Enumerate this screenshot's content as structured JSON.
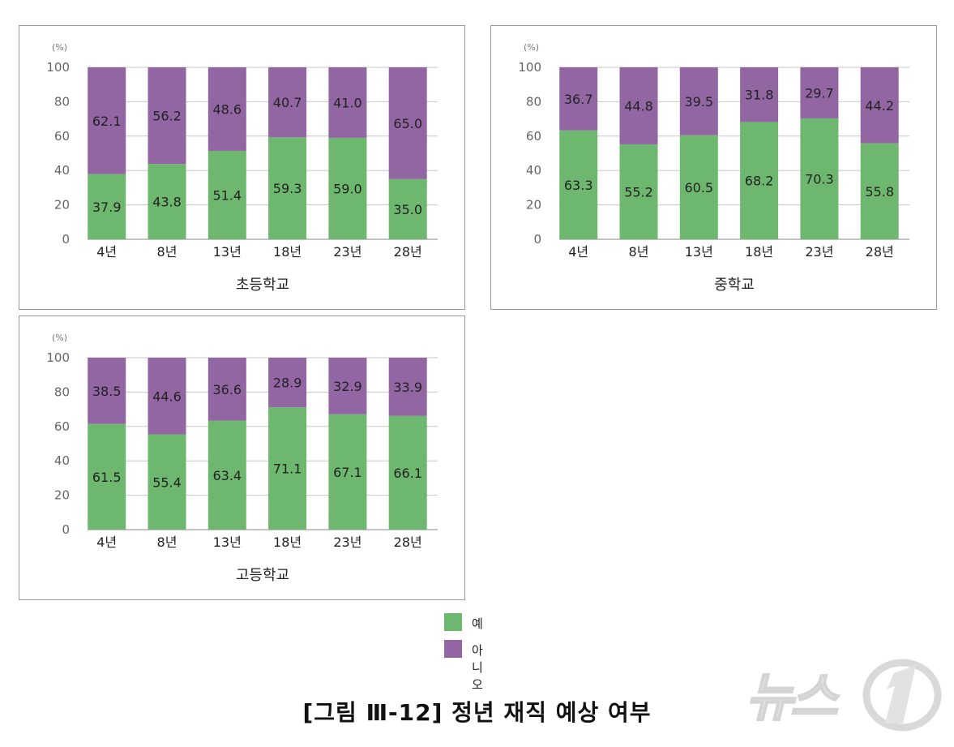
{
  "caption": "[그림 Ⅲ-12] 정년 재직 예상 여부",
  "legend": [
    {
      "label": "예",
      "color": "#6db86e"
    },
    {
      "label": "아니오",
      "color": "#9166a3"
    }
  ],
  "watermark": {
    "text": "뉴스1",
    "icon": "news1-logo"
  },
  "chart_data": [
    {
      "type": "bar",
      "stacked": true,
      "title": "초등학교",
      "unit": "(%)",
      "categories": [
        "4년",
        "8년",
        "13년",
        "18년",
        "23년",
        "28년"
      ],
      "yticks": [
        0,
        20,
        40,
        60,
        80,
        100
      ],
      "ylim": [
        0,
        100
      ],
      "grid": true,
      "series": [
        {
          "name": "예",
          "color": "#6db86e",
          "values": [
            37.9,
            43.8,
            51.4,
            59.3,
            59.0,
            35.0
          ],
          "labels": [
            "37.9",
            "43.8",
            "51.4",
            "59.3",
            "59.0",
            "35.0"
          ]
        },
        {
          "name": "아니오",
          "color": "#9166a3",
          "values": [
            62.1,
            56.2,
            48.6,
            40.7,
            41.0,
            65.0
          ],
          "labels": [
            "62.1",
            "56.2",
            "48.6",
            "40.7",
            "41.0",
            "65.0"
          ]
        }
      ]
    },
    {
      "type": "bar",
      "stacked": true,
      "title": "중학교",
      "unit": "(%)",
      "categories": [
        "4년",
        "8년",
        "13년",
        "18년",
        "23년",
        "28년"
      ],
      "yticks": [
        0,
        20,
        40,
        60,
        80,
        100
      ],
      "ylim": [
        0,
        100
      ],
      "grid": true,
      "series": [
        {
          "name": "예",
          "color": "#6db86e",
          "values": [
            63.3,
            55.2,
            60.5,
            68.2,
            70.3,
            55.8
          ],
          "labels": [
            "63.3",
            "55.2",
            "60.5",
            "68.2",
            "70.3",
            "55.8"
          ]
        },
        {
          "name": "아니오",
          "color": "#9166a3",
          "values": [
            36.7,
            44.8,
            39.5,
            31.8,
            29.7,
            44.2
          ],
          "labels": [
            "36.7",
            "44.8",
            "39.5",
            "31.8",
            "29.7",
            "44.2"
          ]
        }
      ]
    },
    {
      "type": "bar",
      "stacked": true,
      "title": "고등학교",
      "unit": "(%)",
      "categories": [
        "4년",
        "8년",
        "13년",
        "18년",
        "23년",
        "28년"
      ],
      "yticks": [
        0,
        20,
        40,
        60,
        80,
        100
      ],
      "ylim": [
        0,
        100
      ],
      "grid": true,
      "series": [
        {
          "name": "예",
          "color": "#6db86e",
          "values": [
            61.5,
            55.4,
            63.4,
            71.1,
            67.1,
            66.1
          ],
          "labels": [
            "61.5",
            "55.4",
            "63.4",
            "71.1",
            "67.1",
            "66.1"
          ]
        },
        {
          "name": "아니오",
          "color": "#9166a3",
          "values": [
            38.5,
            44.6,
            36.6,
            28.9,
            32.9,
            33.9
          ],
          "labels": [
            "38.5",
            "44.6",
            "36.6",
            "28.9",
            "32.9",
            "33.9"
          ]
        }
      ]
    }
  ]
}
